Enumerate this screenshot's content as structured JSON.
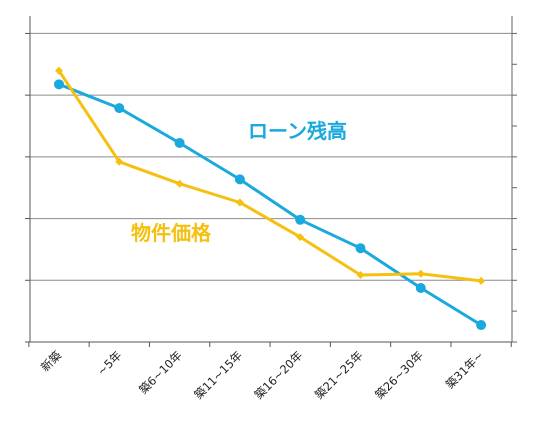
{
  "chart_data": {
    "type": "line",
    "title": "",
    "xlabel": "",
    "ylabel": "",
    "categories": [
      "新築",
      "~5年",
      "築6~10年",
      "築11~15年",
      "築16~20年",
      "築21~25年",
      "築26~30年",
      "築31年~"
    ],
    "ylim": [
      0,
      105
    ],
    "grid": true,
    "series": [
      {
        "name": "ローン残高",
        "color": "#1aa9dd",
        "marker": "circle",
        "values": [
          83.5,
          75.8,
          64.5,
          52.7,
          39.6,
          30.4,
          17.5,
          5.5
        ]
      },
      {
        "name": "物件価格",
        "color": "#f5c00f",
        "marker": "diamond",
        "values": [
          87.9,
          58.4,
          51.3,
          45.2,
          34.0,
          21.7,
          22.1,
          19.8
        ]
      }
    ]
  }
}
